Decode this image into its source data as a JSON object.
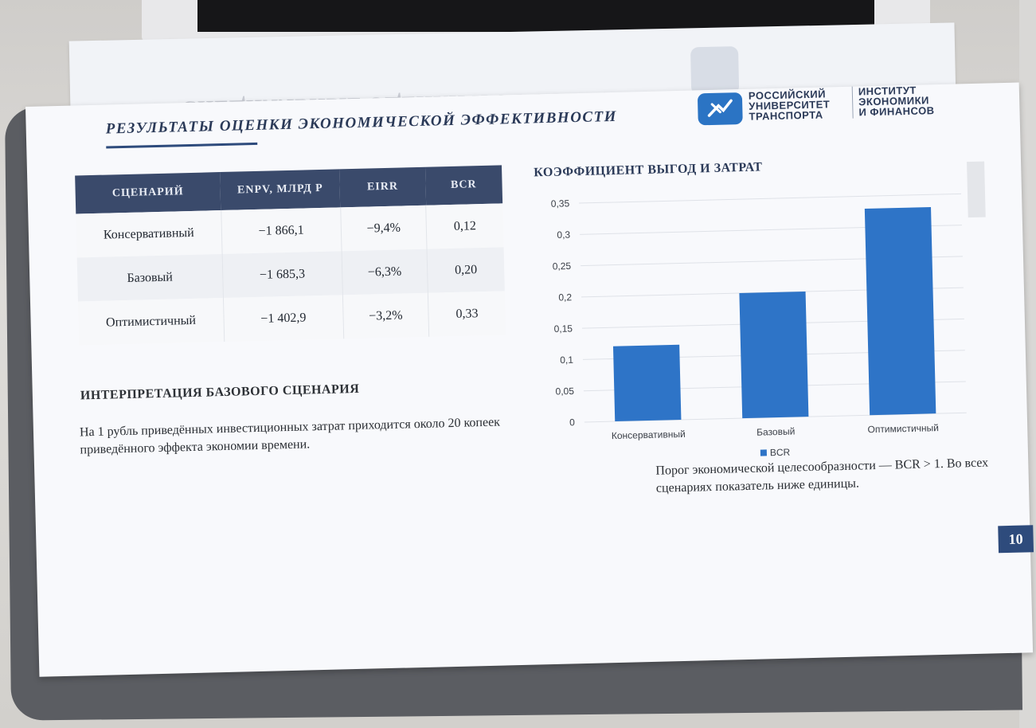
{
  "background": {
    "desk_color": "#d9d8d6",
    "binder_color": "#5b5d62"
  },
  "previous_page": {
    "ghost_title": "СПЕЦИАЛЬНЫЕ ОЦЕНКИ И ЭФФЕКТ ЭКОНОМИИ ВРЕМЕНИ"
  },
  "page": {
    "title": "РЕЗУЛЬТАТЫ ОЦЕНКИ ЭКОНОМИЧЕСКОЙ ЭФФЕКТИВНОСТИ",
    "logo": {
      "icon": "rut-logo-icon",
      "university_lines": [
        "РОССИЙСКИЙ",
        "УНИВЕРСИТЕТ",
        "ТРАНСПОРТА"
      ],
      "institute_lines": [
        "ИНСТИТУТ",
        "ЭКОНОМИКИ",
        "И ФИНАНСОВ"
      ],
      "brand_color": "#2b74c4"
    },
    "table": {
      "headers": [
        "СЦЕНАРИЙ",
        "ENPV, МЛРД Р",
        "EIRR",
        "BCR"
      ],
      "rows": [
        [
          "Консервативный",
          "−1 866,1",
          "−9,4%",
          "0,12"
        ],
        [
          "Базовый",
          "−1 685,3",
          "−6,3%",
          "0,20"
        ],
        [
          "Оптимистичный",
          "−1 402,9",
          "−3,2%",
          "0,33"
        ]
      ],
      "header_color": "#3a4a6b"
    },
    "interpretation": {
      "title": "ИНТЕРПРЕТАЦИЯ БАЗОВОГО СЦЕНАРИЯ",
      "text": "На 1 рубль приведённых инвестиционных затрат приходится около 20 копеек приведённого эффекта экономии времени."
    },
    "chart_title": "КОЭФФИЦИЕНТ ВЫГОД И ЗАТРАТ",
    "note": "Порог экономической целесообразности — BCR > 1. Во всех сценариях показатель ниже единицы.",
    "page_number": "10",
    "accent_color": "#2e4b7c"
  },
  "chart_data": {
    "type": "bar",
    "title": "КОЭФФИЦИЕНТ ВЫГОД И ЗАТРАТ",
    "categories": [
      "Консервативный",
      "Базовый",
      "Оптимистичный"
    ],
    "series": [
      {
        "name": "BCR",
        "values": [
          0.12,
          0.2,
          0.33
        ],
        "color": "#2e74c7"
      }
    ],
    "yticks": [
      "0",
      "0,05",
      "0,1",
      "0,15",
      "0,2",
      "0,25",
      "0,3",
      "0,35"
    ],
    "ylim": [
      0,
      0.35
    ],
    "grid": true,
    "legend": "bottom"
  }
}
